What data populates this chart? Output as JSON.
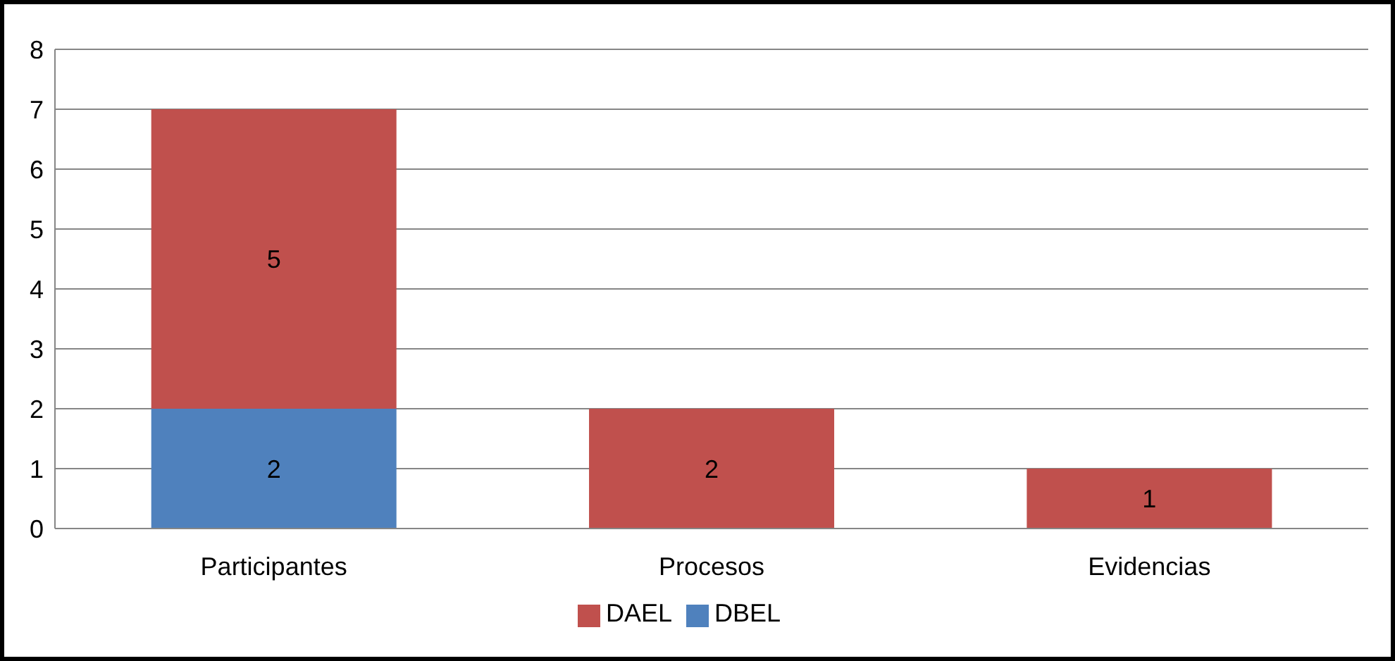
{
  "chart_data": {
    "type": "bar",
    "stacked": true,
    "categories": [
      "Participantes",
      "Procesos",
      "Evidencias"
    ],
    "series": [
      {
        "name": "DBEL",
        "color": "#4f81bd",
        "values": [
          2,
          null,
          null
        ]
      },
      {
        "name": "DAEL",
        "color": "#c0504d",
        "values": [
          5,
          2,
          1
        ]
      }
    ],
    "ylim": [
      0,
      8
    ],
    "yticks": [
      0,
      1,
      2,
      3,
      4,
      5,
      6,
      7,
      8
    ],
    "grid": "y",
    "legend": "bottom",
    "data_labels": true
  }
}
